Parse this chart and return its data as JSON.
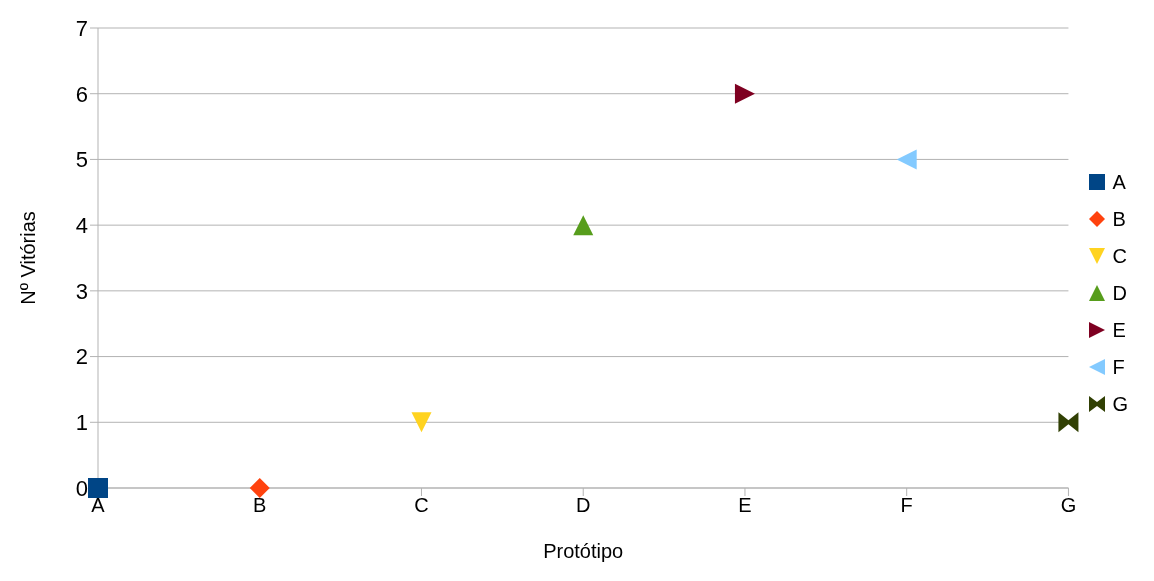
{
  "chart_data": {
    "type": "scatter",
    "xlabel": "Protótipo",
    "ylabel": "Nº Vitórias",
    "categories": [
      "A",
      "B",
      "C",
      "D",
      "E",
      "F",
      "G"
    ],
    "ylim": [
      0,
      7
    ],
    "yticks": [
      0,
      1,
      2,
      3,
      4,
      5,
      6,
      7
    ],
    "grid": "y",
    "legend": "right",
    "series": [
      {
        "name": "A",
        "color": "#004586",
        "marker": "square",
        "values": [
          0,
          null,
          null,
          null,
          null,
          null,
          null
        ]
      },
      {
        "name": "B",
        "color": "#ff420e",
        "marker": "diamond",
        "values": [
          null,
          0,
          null,
          null,
          null,
          null,
          null
        ]
      },
      {
        "name": "C",
        "color": "#ffd320",
        "marker": "triangle-down",
        "values": [
          null,
          null,
          1,
          null,
          null,
          null,
          null
        ]
      },
      {
        "name": "D",
        "color": "#579d1c",
        "marker": "triangle",
        "values": [
          null,
          null,
          null,
          4,
          null,
          null,
          null
        ]
      },
      {
        "name": "E",
        "color": "#7e0021",
        "marker": "triangle-right",
        "values": [
          null,
          null,
          null,
          null,
          6,
          null,
          null
        ]
      },
      {
        "name": "F",
        "color": "#83caff",
        "marker": "triangle-left",
        "values": [
          null,
          null,
          null,
          null,
          null,
          5,
          null
        ]
      },
      {
        "name": "G",
        "color": "#314004",
        "values": [
          null,
          null,
          null,
          null,
          null,
          null,
          1
        ]
      }
    ]
  }
}
